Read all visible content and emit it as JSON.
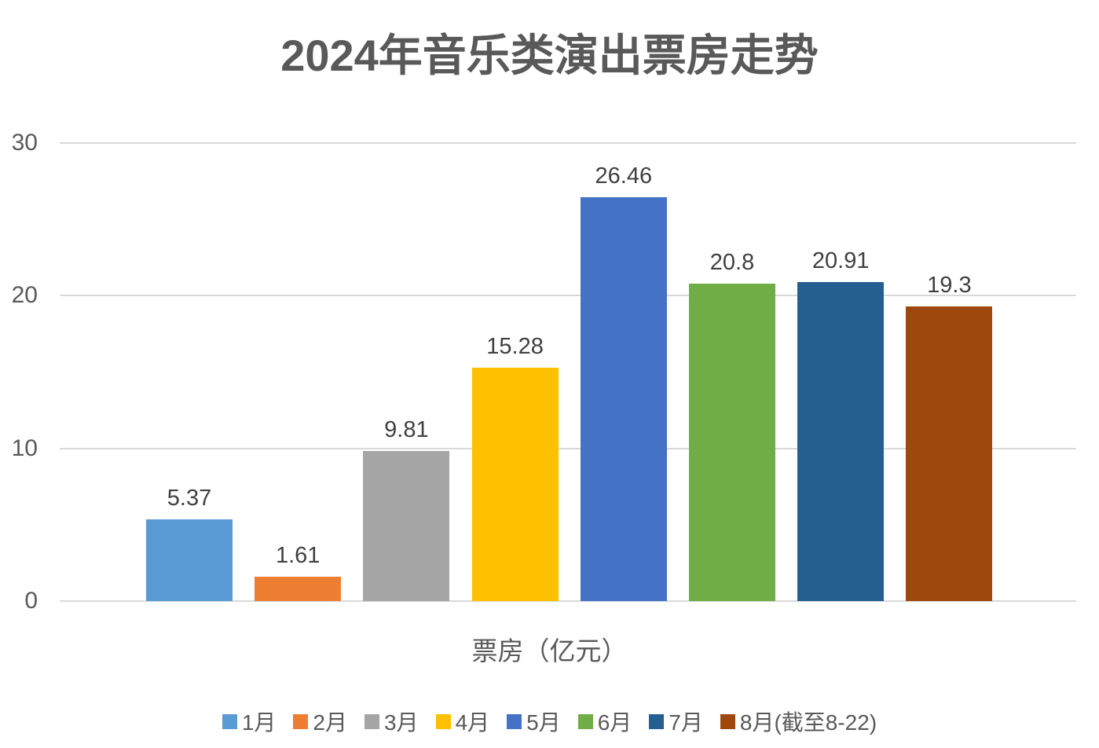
{
  "title": "2024年音乐类演出票房走势",
  "chart_data": {
    "type": "bar",
    "title": "2024年音乐类演出票房走势",
    "categories": [
      "1月",
      "2月",
      "3月",
      "4月",
      "5月",
      "6月",
      "7月",
      "8月(截至8-22)"
    ],
    "values": [
      5.37,
      1.61,
      9.81,
      15.28,
      26.46,
      20.8,
      20.91,
      19.3
    ],
    "value_labels": [
      "5.37",
      "1.61",
      "9.81",
      "15.28",
      "26.46",
      "20.8",
      "20.91",
      "19.3"
    ],
    "colors": [
      "#5B9BD5",
      "#ED7D31",
      "#A5A5A5",
      "#FFC000",
      "#4472C4",
      "#70AD47",
      "#255E91",
      "#9E480E"
    ],
    "xlabel": "票房（亿元）",
    "ylabel": "",
    "ylim": [
      0,
      30
    ],
    "yticks": [
      30,
      20,
      10,
      0
    ],
    "grid": true,
    "legend_position": "bottom"
  },
  "style": {
    "background": "#FFFFFF",
    "title_color": "#595959",
    "tick_color": "#595959",
    "value_label_color": "#404040",
    "gridline_color": "#D9D9D9"
  }
}
